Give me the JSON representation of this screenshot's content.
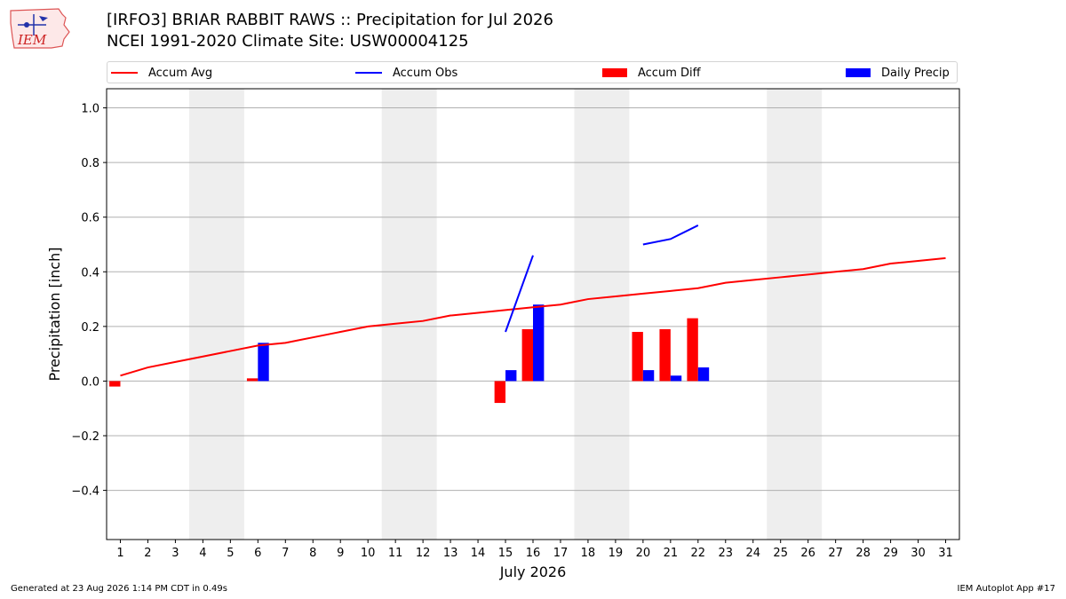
{
  "header": {
    "title_line1": "[IRFO3] BRIAR RABBIT RAWS :: Precipitation for Jul 2026",
    "title_line2": "NCEI 1991-2020 Climate Site: USW00004125",
    "logo_text": "IEM"
  },
  "legend": {
    "accum_avg": "Accum Avg",
    "accum_obs": "Accum Obs",
    "accum_diff": "Accum Diff",
    "daily_precip": "Daily Precip"
  },
  "footer": {
    "generated": "Generated at 23 Aug 2026 1:14 PM CDT in 0.49s",
    "app": "IEM Autoplot App #17"
  },
  "colors": {
    "avg": "#ff0000",
    "obs": "#0000ff",
    "diff": "#ff0000",
    "daily": "#0000ff",
    "weekend_shade": "#eeeeee",
    "grid": "#b0b0b0"
  },
  "chart_data": {
    "type": "bar",
    "xlabel": "July 2026",
    "ylabel": "Precipitation [inch]",
    "xlim": [
      0.5,
      31.5
    ],
    "ylim": [
      -0.58,
      1.07
    ],
    "yticks": [
      -0.4,
      -0.2,
      0.0,
      0.2,
      0.4,
      0.6,
      0.8,
      1.0
    ],
    "ytick_labels": [
      "−0.4",
      "−0.2",
      "0.0",
      "0.2",
      "0.4",
      "0.6",
      "0.8",
      "1.0"
    ],
    "days": [
      1,
      2,
      3,
      4,
      5,
      6,
      7,
      8,
      9,
      10,
      11,
      12,
      13,
      14,
      15,
      16,
      17,
      18,
      19,
      20,
      21,
      22,
      23,
      24,
      25,
      26,
      27,
      28,
      29,
      30,
      31
    ],
    "grid": "horizontal",
    "legend_position": "top",
    "weekend_shading": [
      [
        4,
        5
      ],
      [
        11,
        12
      ],
      [
        18,
        19
      ],
      [
        25,
        26
      ]
    ],
    "accum_avg": [
      0.02,
      0.05,
      0.07,
      0.09,
      0.11,
      0.13,
      0.14,
      0.16,
      0.18,
      0.2,
      0.21,
      0.22,
      0.24,
      0.25,
      0.26,
      0.27,
      0.28,
      0.3,
      0.31,
      0.32,
      0.33,
      0.34,
      0.36,
      0.37,
      0.38,
      0.39,
      0.4,
      0.41,
      0.43,
      0.44,
      0.45
    ],
    "accum_obs": [
      {
        "x": [
          15,
          16
        ],
        "y": [
          0.18,
          0.46
        ]
      },
      {
        "x": [
          20,
          21,
          22
        ],
        "y": [
          0.5,
          0.52,
          0.57
        ]
      }
    ],
    "accum_diff": [
      {
        "x": 1,
        "y": -0.02
      },
      {
        "x": 6,
        "y": 0.01
      },
      {
        "x": 15,
        "y": -0.08
      },
      {
        "x": 16,
        "y": 0.19
      },
      {
        "x": 20,
        "y": 0.18
      },
      {
        "x": 21,
        "y": 0.19
      },
      {
        "x": 22,
        "y": 0.23
      }
    ],
    "daily_precip": [
      {
        "x": 6,
        "y": 0.14
      },
      {
        "x": 15,
        "y": 0.04
      },
      {
        "x": 16,
        "y": 0.28
      },
      {
        "x": 20,
        "y": 0.04
      },
      {
        "x": 21,
        "y": 0.02
      },
      {
        "x": 22,
        "y": 0.05
      }
    ]
  }
}
